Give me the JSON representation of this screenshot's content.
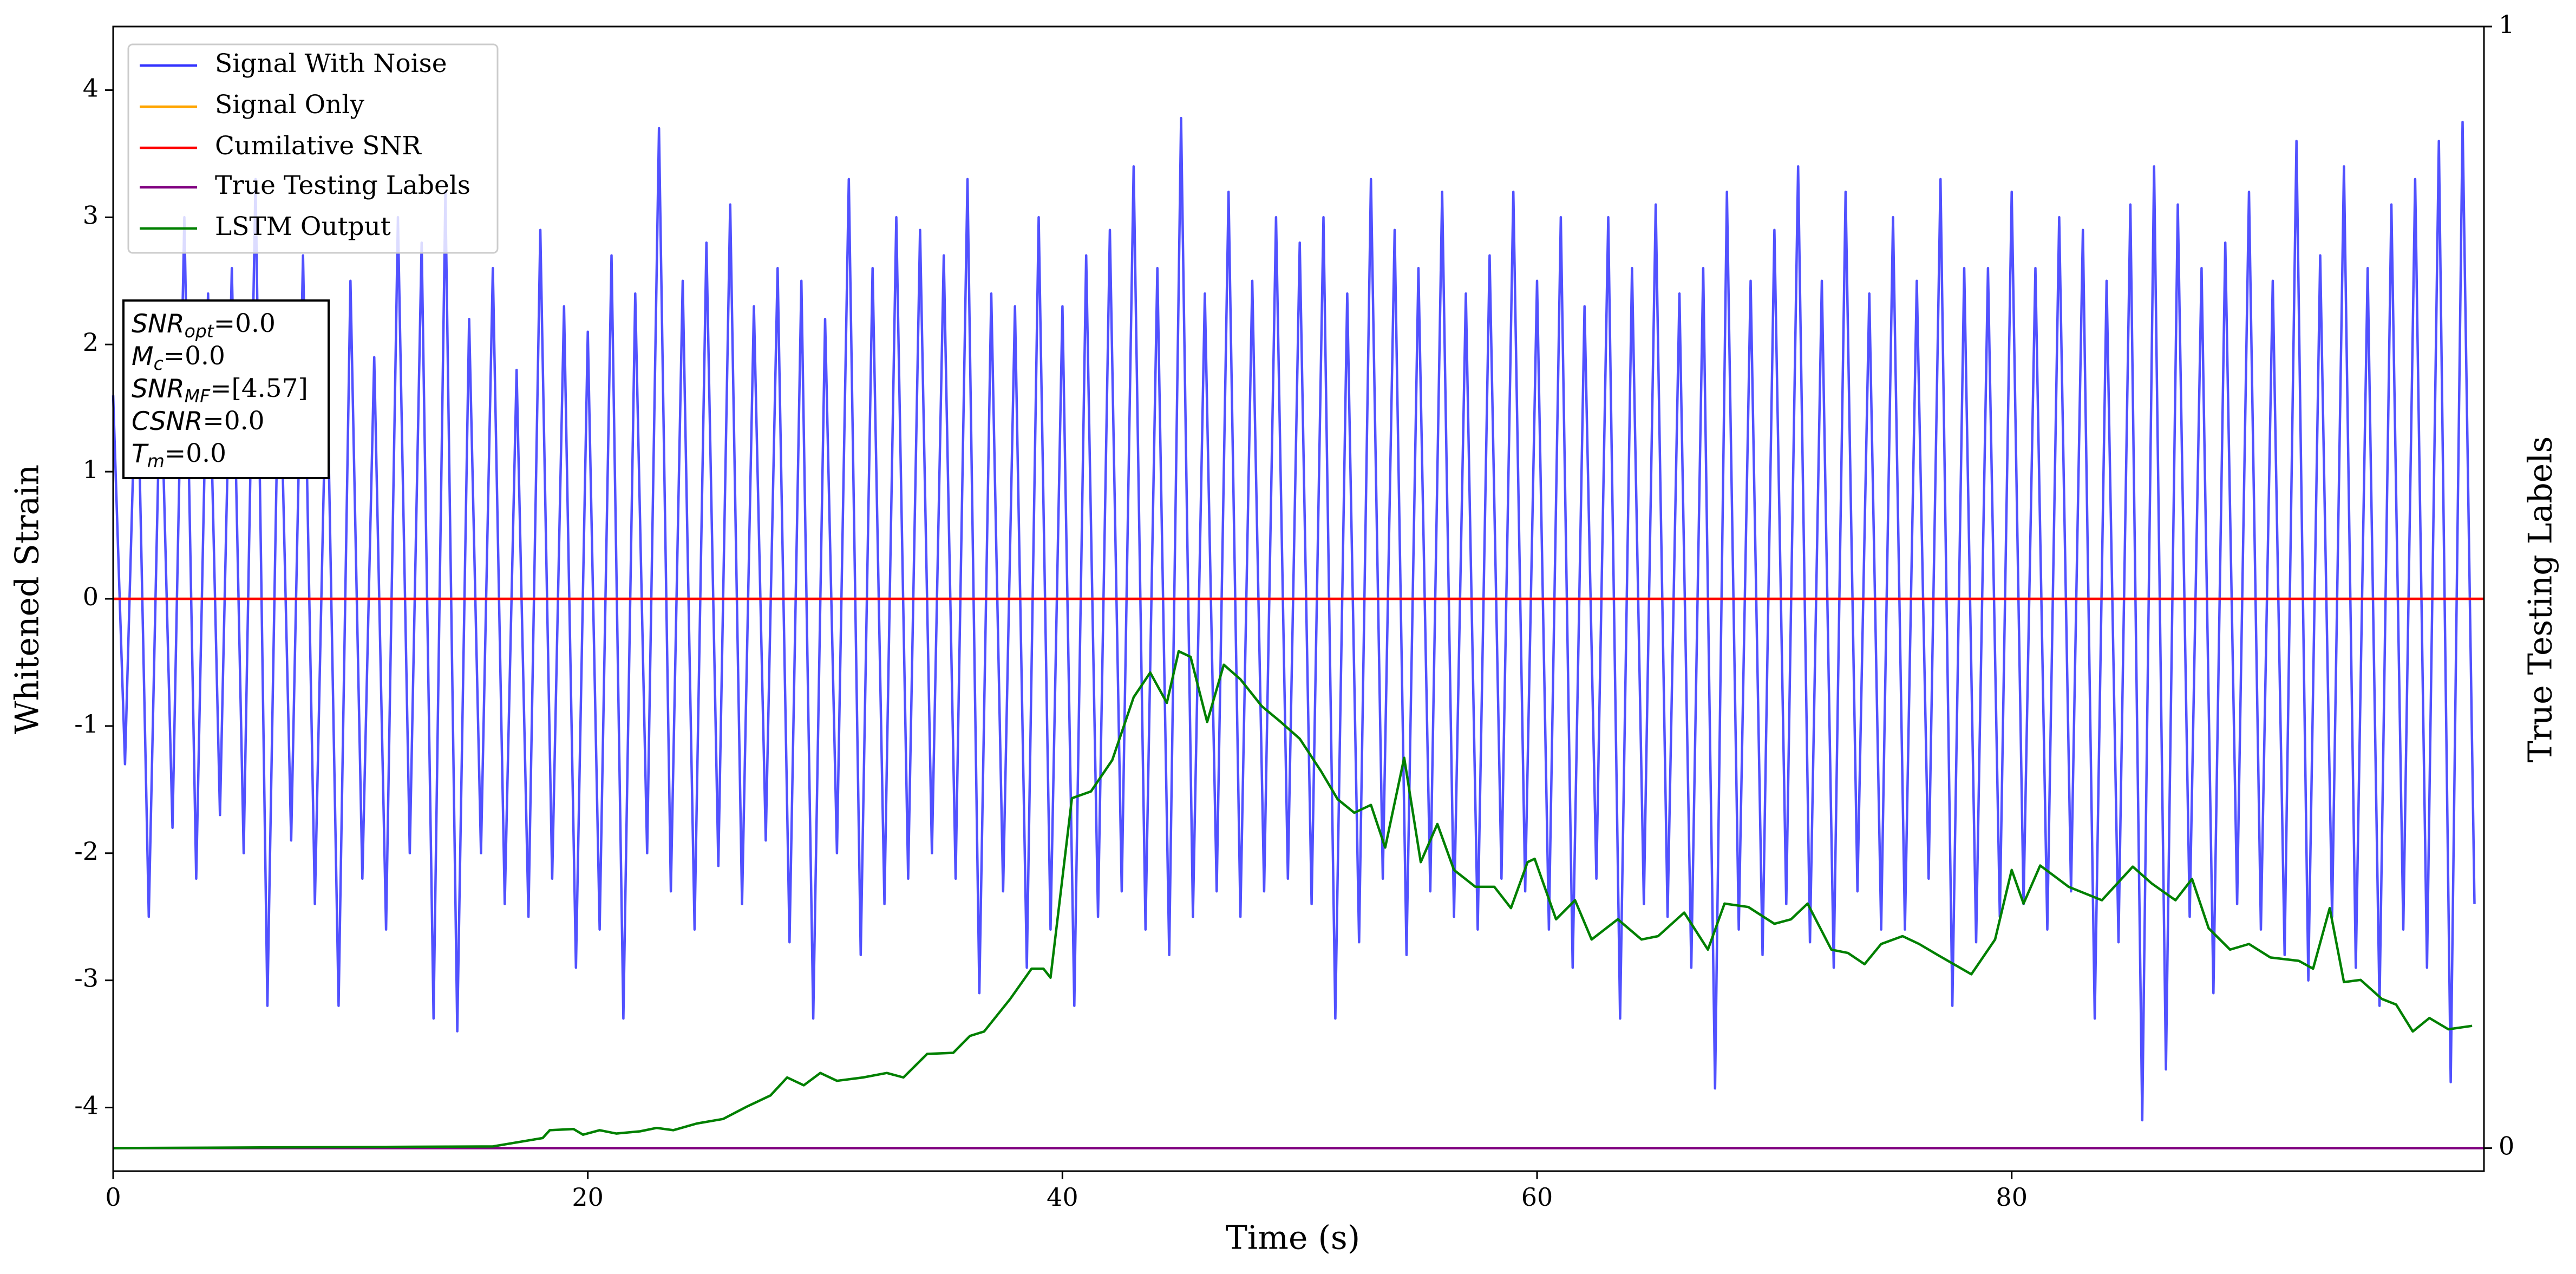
{
  "chart_data": {
    "type": "line",
    "xlabel": "Time (s)",
    "ylabel": "Whitened Strain",
    "y2label": "True Testing Labels",
    "xlim": [
      0,
      99.9
    ],
    "ylim": [
      -4.5,
      4.5
    ],
    "y2lim": [
      -0.0205,
      1.0
    ],
    "xticks": [
      0,
      20,
      40,
      60,
      80
    ],
    "yticks": [
      -4,
      -3,
      -2,
      -1,
      0,
      1,
      2,
      3,
      4
    ],
    "y2ticks": [
      0,
      1
    ],
    "grid": false,
    "legend": "upper left",
    "series": [
      {
        "name": "Signal With Noise",
        "color": "#3333ff",
        "x": [
          0,
          0.5,
          1,
          1.5,
          2,
          2.5,
          3,
          3.5,
          4,
          4.5,
          5,
          5.5,
          6,
          6.5,
          7,
          7.5,
          8,
          8.5,
          9,
          9.5,
          10,
          10.5,
          11,
          11.5,
          12,
          12.5,
          13,
          13.5,
          14,
          14.5,
          15,
          15.5,
          16,
          16.5,
          17,
          17.5,
          18,
          18.5,
          19,
          19.5,
          20,
          20.5,
          21,
          21.5,
          22,
          22.5,
          23,
          23.5,
          24,
          24.5,
          25,
          25.5,
          26,
          26.5,
          27,
          27.5,
          28,
          28.5,
          29,
          29.5,
          30,
          30.5,
          31,
          31.5,
          32,
          32.5,
          33,
          33.5,
          34,
          34.5,
          35,
          35.5,
          36,
          36.5,
          37,
          37.5,
          38,
          38.5,
          39,
          39.5,
          40,
          40.5,
          41,
          41.5,
          42,
          42.5,
          43,
          43.5,
          44,
          44.5,
          45,
          45.5,
          46,
          46.5,
          47,
          47.5,
          48,
          48.5,
          49,
          49.5,
          50,
          50.5,
          51,
          51.5,
          52,
          52.5,
          53,
          53.5,
          54,
          54.5,
          55,
          55.5,
          56,
          56.5,
          57,
          57.5,
          58,
          58.5,
          59,
          59.5,
          60,
          60.5,
          61,
          61.5,
          62,
          62.5,
          63,
          63.5,
          64,
          64.5,
          65,
          65.5,
          66,
          66.5,
          67,
          67.5,
          68,
          68.5,
          69,
          69.5,
          70,
          70.5,
          71,
          71.5,
          72,
          72.5,
          73,
          73.5,
          74,
          74.5,
          75,
          75.5,
          76,
          76.5,
          77,
          77.5,
          78,
          78.5,
          79,
          79.5,
          80,
          80.5,
          81,
          81.5,
          82,
          82.5,
          83,
          83.5,
          84,
          84.5,
          85,
          85.5,
          86,
          86.5,
          87,
          87.5,
          88,
          88.5,
          89,
          89.5,
          90,
          90.5,
          91,
          91.5,
          92,
          92.5,
          93,
          93.5,
          94,
          94.5,
          95,
          95.5,
          96,
          96.5,
          97,
          97.5,
          98,
          98.5,
          99,
          99.5
        ],
        "values": [
          1.6,
          -1.3,
          2.1,
          -2.5,
          1.9,
          -1.8,
          3.0,
          -2.2,
          2.4,
          -1.7,
          2.6,
          -2.0,
          3.3,
          -3.2,
          2.2,
          -1.9,
          2.7,
          -2.4,
          2.0,
          -3.2,
          2.5,
          -2.2,
          1.9,
          -2.6,
          3.0,
          -2.0,
          2.8,
          -3.3,
          3.2,
          -3.4,
          2.2,
          -2.0,
          2.6,
          -2.4,
          1.8,
          -2.5,
          2.9,
          -2.2,
          2.3,
          -2.9,
          2.1,
          -2.6,
          2.7,
          -3.3,
          2.4,
          -2.0,
          3.7,
          -2.3,
          2.5,
          -2.6,
          2.8,
          -2.1,
          3.1,
          -2.4,
          2.3,
          -1.9,
          2.6,
          -2.7,
          2.5,
          -3.3,
          2.2,
          -2.0,
          3.3,
          -2.8,
          2.6,
          -2.4,
          3.0,
          -2.2,
          2.9,
          -2.0,
          2.7,
          -2.2,
          3.3,
          -3.1,
          2.4,
          -2.3,
          2.3,
          -2.9,
          3.0,
          -2.6,
          2.3,
          -3.2,
          2.7,
          -2.5,
          2.9,
          -2.3,
          3.4,
          -2.6,
          2.6,
          -2.8,
          3.78,
          -2.5,
          2.4,
          -2.3,
          3.2,
          -2.5,
          2.5,
          -2.3,
          3.0,
          -2.2,
          2.8,
          -2.4,
          3.0,
          -3.3,
          2.4,
          -2.7,
          3.3,
          -2.2,
          2.9,
          -2.8,
          2.6,
          -2.3,
          3.2,
          -2.5,
          2.4,
          -2.6,
          2.7,
          -2.2,
          3.2,
          -2.3,
          2.5,
          -2.6,
          3.0,
          -2.9,
          2.3,
          -2.2,
          3.0,
          -3.3,
          2.6,
          -2.4,
          3.1,
          -2.5,
          2.4,
          -2.9,
          2.6,
          -3.85,
          3.2,
          -2.6,
          2.5,
          -2.8,
          2.9,
          -2.4,
          3.4,
          -2.7,
          2.5,
          -2.9,
          3.2,
          -2.3,
          2.4,
          -2.6,
          3.0,
          -2.6,
          2.5,
          -2.2,
          3.3,
          -3.2,
          2.6,
          -2.7,
          2.6,
          -2.5,
          3.2,
          -2.4,
          2.6,
          -2.6,
          3.0,
          -2.3,
          2.9,
          -3.3,
          2.5,
          -2.7,
          3.1,
          -4.1,
          3.4,
          -3.7,
          3.1,
          -2.5,
          2.6,
          -3.1,
          2.8,
          -2.4,
          3.2,
          -2.6,
          2.5,
          -2.8,
          3.6,
          -3.0,
          2.7,
          -2.5,
          3.4,
          -2.9,
          2.6,
          -3.2,
          3.1,
          -2.6,
          3.3,
          -2.9,
          3.6,
          -3.8,
          3.75,
          -2.4
        ]
      },
      {
        "name": "Signal Only",
        "color": "#ffa500",
        "x": [
          0,
          99.9
        ],
        "values": [
          0,
          0
        ]
      },
      {
        "name": "Cumilative SNR",
        "color": "#ff0000",
        "x": [
          0,
          99.9
        ],
        "values": [
          0,
          0
        ]
      },
      {
        "name": "True Testing Labels",
        "color": "#800080",
        "axis": "y2",
        "x": [
          0,
          99.9
        ],
        "values": [
          0,
          0
        ]
      },
      {
        "name": "LSTM Output",
        "color": "#008000",
        "axis": "y2",
        "x": [
          0,
          16,
          16.7,
          18.1,
          18.4,
          19.4,
          19.8,
          20.5,
          21.2,
          22.2,
          22.9,
          23.6,
          24.6,
          25.7,
          26.7,
          27.7,
          28.4,
          29.1,
          29.8,
          30.5,
          31.6,
          32.6,
          33.3,
          34.3,
          35.4,
          36.1,
          36.7,
          37.8,
          38.7,
          39.2,
          39.5,
          40.4,
          41.2,
          42.1,
          43.0,
          43.7,
          44.4,
          44.9,
          45.4,
          46.1,
          46.8,
          47.5,
          48.4,
          49.2,
          50.0,
          50.9,
          51.6,
          52.3,
          53.0,
          53.6,
          54.4,
          55.1,
          55.8,
          56.5,
          57.4,
          58.2,
          58.9,
          59.6,
          59.9,
          60.8,
          61.6,
          62.3,
          63.4,
          64.4,
          65.1,
          66.2,
          67.2,
          67.9,
          68.9,
          70.0,
          70.7,
          71.4,
          72.4,
          73.1,
          73.8,
          74.5,
          75.4,
          76.1,
          76.9,
          78.3,
          79.3,
          80.0,
          80.5,
          81.2,
          82.4,
          83.8,
          85.1,
          85.9,
          86.9,
          87.6,
          88.3,
          89.2,
          90.0,
          90.9,
          92.1,
          92.7,
          93.4,
          94.0,
          94.7,
          95.6,
          96.2,
          96.9,
          97.6,
          98.4,
          99.4
        ],
        "values": [
          0,
          0.0015,
          0.004,
          0.009,
          0.016,
          0.017,
          0.012,
          0.016,
          0.013,
          0.015,
          0.018,
          0.016,
          0.022,
          0.026,
          0.037,
          0.047,
          0.063,
          0.056,
          0.067,
          0.06,
          0.063,
          0.067,
          0.063,
          0.084,
          0.085,
          0.1,
          0.104,
          0.133,
          0.16,
          0.16,
          0.152,
          0.312,
          0.318,
          0.346,
          0.402,
          0.424,
          0.397,
          0.443,
          0.438,
          0.38,
          0.431,
          0.418,
          0.394,
          0.38,
          0.365,
          0.336,
          0.311,
          0.299,
          0.306,
          0.268,
          0.348,
          0.255,
          0.289,
          0.248,
          0.233,
          0.233,
          0.214,
          0.255,
          0.258,
          0.204,
          0.221,
          0.186,
          0.204,
          0.186,
          0.189,
          0.21,
          0.177,
          0.218,
          0.215,
          0.2,
          0.204,
          0.218,
          0.177,
          0.174,
          0.164,
          0.182,
          0.189,
          0.182,
          0.172,
          0.155,
          0.186,
          0.248,
          0.218,
          0.252,
          0.233,
          0.221,
          0.251,
          0.236,
          0.221,
          0.24,
          0.196,
          0.177,
          0.182,
          0.17,
          0.167,
          0.16,
          0.214,
          0.148,
          0.15,
          0.133,
          0.128,
          0.104,
          0.116,
          0.106,
          0.109
        ]
      }
    ],
    "annotation": {
      "lines": [
        {
          "main": "SNR",
          "sub": "opt",
          "rest": "=0.0"
        },
        {
          "main": "M",
          "sub": "c",
          "rest": "=0.0"
        },
        {
          "main": "SNR",
          "sub": "MF",
          "rest": "=[4.57]"
        },
        {
          "main": "CSNR",
          "rest": "=0.0"
        },
        {
          "main": "T",
          "sub": "m",
          "rest": "=0.0"
        }
      ]
    }
  }
}
